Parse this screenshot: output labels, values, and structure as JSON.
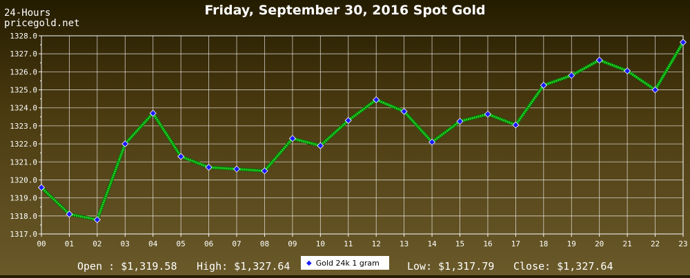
{
  "header": {
    "period": "24-Hours",
    "site": "pricegold.net",
    "title": "Friday, September 30, 2016 Spot Gold"
  },
  "stats": {
    "open": "Open : $1,319.58",
    "high": "High: $1,327.64",
    "low": "Low: $1,317.79",
    "close": "Close: $1,327.64"
  },
  "legend": {
    "label": "Gold 24k 1 gram"
  },
  "colors": {
    "line": "#22dd22",
    "marker": "#1a1aff",
    "grid": "#ffffff",
    "plot_border": "#ffffff"
  },
  "chart_data": {
    "type": "line",
    "title": "Friday, September 30, 2016 Spot Gold",
    "xlabel": "",
    "ylabel": "",
    "x": [
      "00",
      "01",
      "02",
      "03",
      "04",
      "05",
      "06",
      "07",
      "08",
      "09",
      "10",
      "11",
      "12",
      "13",
      "14",
      "15",
      "16",
      "17",
      "18",
      "19",
      "20",
      "21",
      "22",
      "23"
    ],
    "series": [
      {
        "name": "Gold 24k 1 gram",
        "values": [
          1319.58,
          1318.1,
          1317.79,
          1322.0,
          1323.7,
          1321.3,
          1320.7,
          1320.6,
          1320.5,
          1322.3,
          1321.9,
          1323.3,
          1324.45,
          1323.8,
          1322.1,
          1323.25,
          1323.65,
          1323.05,
          1325.25,
          1325.8,
          1326.65,
          1326.05,
          1325.0,
          1327.64
        ]
      }
    ],
    "yticks": [
      "1317.0",
      "1318.0",
      "1319.0",
      "1320.0",
      "1321.0",
      "1322.0",
      "1323.0",
      "1324.0",
      "1325.0",
      "1326.0",
      "1327.0",
      "1328.0"
    ],
    "ylim": [
      1317.0,
      1328.0
    ],
    "grid": true,
    "legend_position": "bottom-center"
  }
}
